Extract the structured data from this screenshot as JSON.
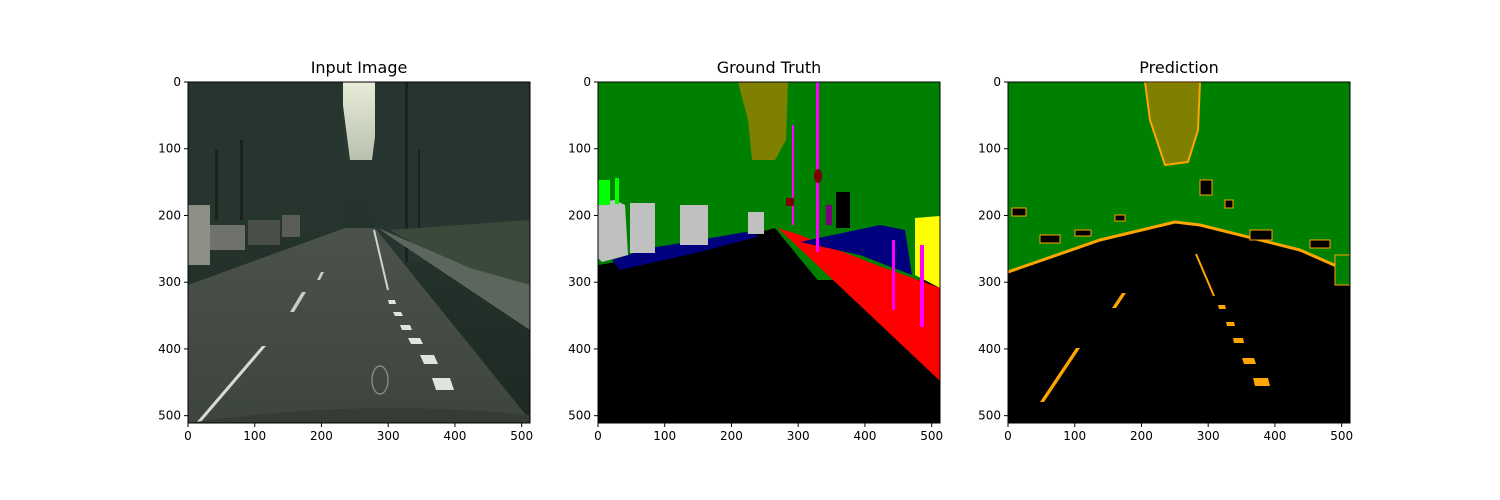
{
  "figure": {
    "panels": [
      {
        "id": "input",
        "title": "Input Image",
        "image_icon": "street-photo",
        "xticks": [
          "0",
          "100",
          "200",
          "300",
          "400",
          "500"
        ],
        "yticks": [
          "0",
          "100",
          "200",
          "300",
          "400",
          "500"
        ]
      },
      {
        "id": "ground-truth",
        "title": "Ground Truth",
        "image_icon": "segmentation-map",
        "xticks": [
          "0",
          "100",
          "200",
          "300",
          "400",
          "500"
        ],
        "yticks": [
          "0",
          "100",
          "200",
          "300",
          "400",
          "500"
        ]
      },
      {
        "id": "prediction",
        "title": "Prediction",
        "image_icon": "prediction-map",
        "xticks": [
          "0",
          "100",
          "200",
          "300",
          "400",
          "500"
        ],
        "yticks": [
          "0",
          "100",
          "200",
          "300",
          "400",
          "500"
        ]
      }
    ],
    "axis_range": [
      0,
      511
    ],
    "colors": {
      "road": "#000000",
      "vegetation": "#008000",
      "sky": "#808000",
      "sidewalk": "#ff0000",
      "car": "#00007f",
      "wall": "#c0c0c0",
      "pole": "#ff00ff",
      "building-light": "#ffff00",
      "terrain": "#00ff00",
      "prediction-edge": "#ffa500"
    }
  }
}
